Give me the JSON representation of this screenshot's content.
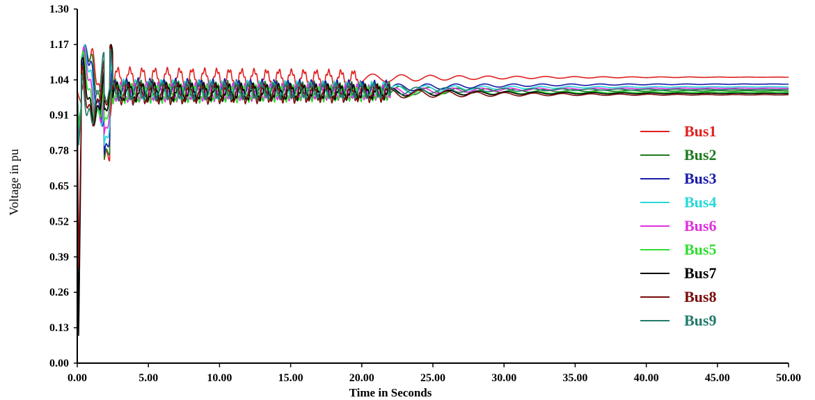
{
  "chart_data": {
    "type": "line",
    "title": "",
    "xlabel": "Time in Seconds",
    "ylabel": "Voltage in pu",
    "xlim": [
      0,
      50
    ],
    "ylim": [
      0,
      1.3
    ],
    "xticks": [
      "0.00",
      "5.00",
      "10.00",
      "15.00",
      "20.00",
      "25.00",
      "30.00",
      "35.00",
      "40.00",
      "45.00",
      "50.00"
    ],
    "yticks": [
      "0.00",
      "0.13",
      "0.26",
      "0.39",
      "0.52",
      "0.65",
      "0.78",
      "0.91",
      "1.04",
      "1.17",
      "1.30"
    ],
    "legend_position": "right",
    "grid": false,
    "series": [
      {
        "name": "Bus1",
        "color": "#e02020",
        "final": 1.05,
        "osc_amp": 0.035,
        "osc_center": 1.045,
        "osc_end": 20,
        "min_dip": 0.98
      },
      {
        "name": "Bus2",
        "color": "#1e7a1e",
        "final": 1.0,
        "osc_amp": 0.035,
        "osc_center": 1.0,
        "osc_end": 22,
        "min_dip": 0.88
      },
      {
        "name": "Bus3",
        "color": "#1a1aa8",
        "final": 1.025,
        "osc_amp": 0.03,
        "osc_center": 1.01,
        "osc_end": 22,
        "min_dip": 0.85
      },
      {
        "name": "Bus4",
        "color": "#28d8d8",
        "final": 1.015,
        "osc_amp": 0.03,
        "osc_center": 1.005,
        "osc_end": 22,
        "min_dip": 0.84
      },
      {
        "name": "Bus6",
        "color": "#e030e0",
        "final": 1.01,
        "osc_amp": 0.03,
        "osc_center": 0.995,
        "osc_end": 22,
        "min_dip": 0.82
      },
      {
        "name": "Bus5",
        "color": "#30dd30",
        "final": 0.995,
        "osc_amp": 0.03,
        "osc_center": 0.99,
        "osc_end": 22,
        "min_dip": 0.86
      },
      {
        "name": "Bus7",
        "color": "#000000",
        "final": 0.99,
        "osc_amp": 0.03,
        "osc_center": 0.995,
        "osc_end": 22,
        "min_dip": 0.1
      },
      {
        "name": "Bus8",
        "color": "#7a0a0a",
        "final": 0.985,
        "osc_amp": 0.035,
        "osc_center": 0.99,
        "osc_end": 22,
        "min_dip": 0.35
      },
      {
        "name": "Bus9",
        "color": "#207a6a",
        "final": 1.005,
        "osc_amp": 0.03,
        "osc_center": 1.0,
        "osc_end": 22,
        "min_dip": 0.8
      }
    ]
  }
}
